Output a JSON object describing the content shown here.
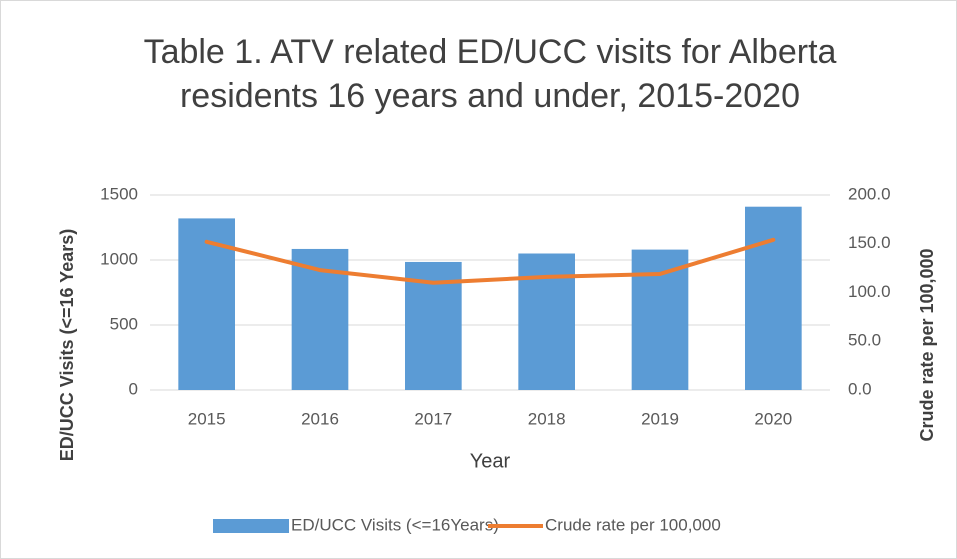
{
  "chart_data": {
    "type": "bar",
    "title": "Table 1. ATV related ED/UCC visits for Alberta residents 16 years and under, 2015-2020",
    "x_label": "Year",
    "y_label": "ED/UCC Visits (<=16 Years)",
    "y2_label": "Crude rate per 100,000",
    "categories": [
      "2015",
      "2016",
      "2017",
      "2018",
      "2019",
      "2020"
    ],
    "series": [
      {
        "name": "ED/UCC Visits (<=16Years)",
        "type": "bar",
        "color": "#5b9bd5",
        "values": [
          1320,
          1085,
          985,
          1050,
          1080,
          1410
        ]
      },
      {
        "name": "Crude rate per 100,000",
        "type": "line",
        "axis": "y2",
        "color": "#ed7d31",
        "values": [
          152,
          123,
          110,
          116,
          119,
          154
        ]
      }
    ],
    "ylim": [
      0,
      1500
    ],
    "yticks": [
      0,
      500,
      1000,
      1500
    ],
    "y2lim": [
      0,
      200
    ],
    "y2ticks": [
      {
        "value": 0,
        "label": "0.0"
      },
      {
        "value": 50,
        "label": "50.0"
      },
      {
        "value": 100,
        "label": "100.0"
      },
      {
        "value": 150,
        "label": "150.0"
      },
      {
        "value": 200,
        "label": "200.0"
      }
    ],
    "grid": true,
    "legend": "bottom"
  }
}
